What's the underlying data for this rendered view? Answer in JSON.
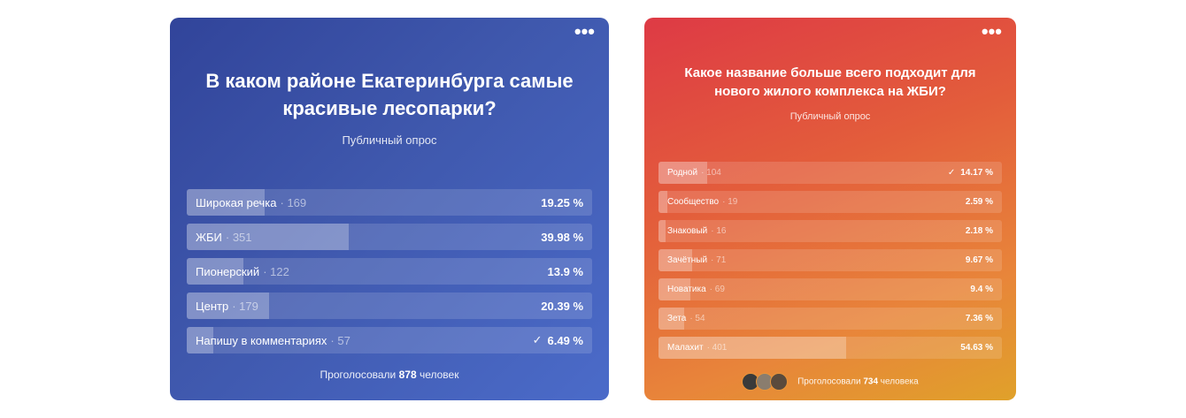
{
  "poll1": {
    "question": "В каком районе Екатеринбурга самые красивые лесопарки?",
    "subtitle": "Публичный опрос",
    "options": [
      {
        "label": "Широкая речка",
        "count": "· 169",
        "percent": "19.25 %",
        "fraction": 0.1925,
        "checked": false
      },
      {
        "label": "ЖБИ",
        "count": "· 351",
        "percent": "39.98 %",
        "fraction": 0.3998,
        "checked": false
      },
      {
        "label": "Пионерский",
        "count": "· 122",
        "percent": "13.9 %",
        "fraction": 0.139,
        "checked": false
      },
      {
        "label": "Центр",
        "count": "· 179",
        "percent": "20.39 %",
        "fraction": 0.2039,
        "checked": false
      },
      {
        "label": "Напишу в комментариях",
        "count": "· 57",
        "percent": "6.49 %",
        "fraction": 0.0649,
        "checked": true
      }
    ],
    "total_prefix": "Проголосовали",
    "total_count": "878",
    "total_suffix": "человек",
    "menu_icon": "more-dots-icon"
  },
  "poll2": {
    "question": "Какое название больше всего подходит для нового жилого комплекса на ЖБИ?",
    "subtitle": "Публичный опрос",
    "options": [
      {
        "label": "Родной",
        "count": "· 104",
        "percent": "14.17 %",
        "fraction": 0.1417,
        "checked": true
      },
      {
        "label": "Сообщество",
        "count": "· 19",
        "percent": "2.59 %",
        "fraction": 0.0259,
        "checked": false
      },
      {
        "label": "Знаковый",
        "count": "· 16",
        "percent": "2.18 %",
        "fraction": 0.0218,
        "checked": false
      },
      {
        "label": "Зачётный",
        "count": "· 71",
        "percent": "9.67 %",
        "fraction": 0.0967,
        "checked": false
      },
      {
        "label": "Новатика",
        "count": "· 69",
        "percent": "9.4 %",
        "fraction": 0.094,
        "checked": false
      },
      {
        "label": "Зета",
        "count": "· 54",
        "percent": "7.36 %",
        "fraction": 0.0736,
        "checked": false
      },
      {
        "label": "Малахит",
        "count": "· 401",
        "percent": "54.63 %",
        "fraction": 0.5463,
        "checked": false
      }
    ],
    "total_prefix": "Проголосовали",
    "total_count": "734",
    "total_suffix": "человека",
    "menu_icon": "more-dots-icon",
    "avatar_colors": [
      "#3a3a3a",
      "#8a7d6e",
      "#5a4a3c"
    ]
  }
}
